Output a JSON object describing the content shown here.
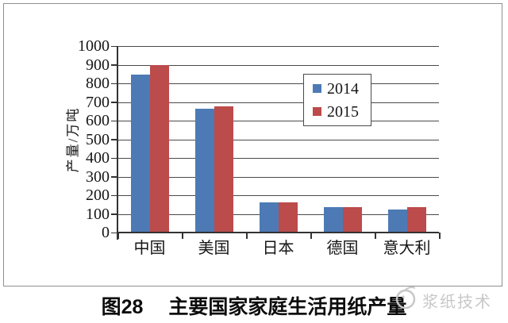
{
  "chart_data": {
    "type": "bar",
    "title": "",
    "categories": [
      "中国",
      "美国",
      "日本",
      "德国",
      "意大利"
    ],
    "series": [
      {
        "name": "2014",
        "color": "#4d7ab5",
        "values": [
          845,
          665,
          160,
          135,
          125
        ]
      },
      {
        "name": "2015",
        "color": "#bc4b4b",
        "values": [
          900,
          675,
          160,
          135,
          135
        ]
      }
    ],
    "xlabel": "",
    "ylabel": "产量/万吨",
    "ylim": [
      0,
      1000
    ],
    "yticks": [
      0,
      100,
      200,
      300,
      400,
      500,
      600,
      700,
      800,
      900,
      1000
    ],
    "grid": true,
    "legend_position": "inside-upper-right"
  },
  "caption": {
    "figure_label": "图28",
    "title": "主要国家家庭生活用纸产量"
  },
  "watermark": {
    "text": "浆纸技术"
  },
  "colors": {
    "series_2014": "#4d7ab5",
    "series_2015": "#bc4b4b",
    "gridline": "#4a4a4a",
    "axis": "#333333",
    "frame_border": "#8f8f8f",
    "watermark": "#c7c7c7"
  }
}
